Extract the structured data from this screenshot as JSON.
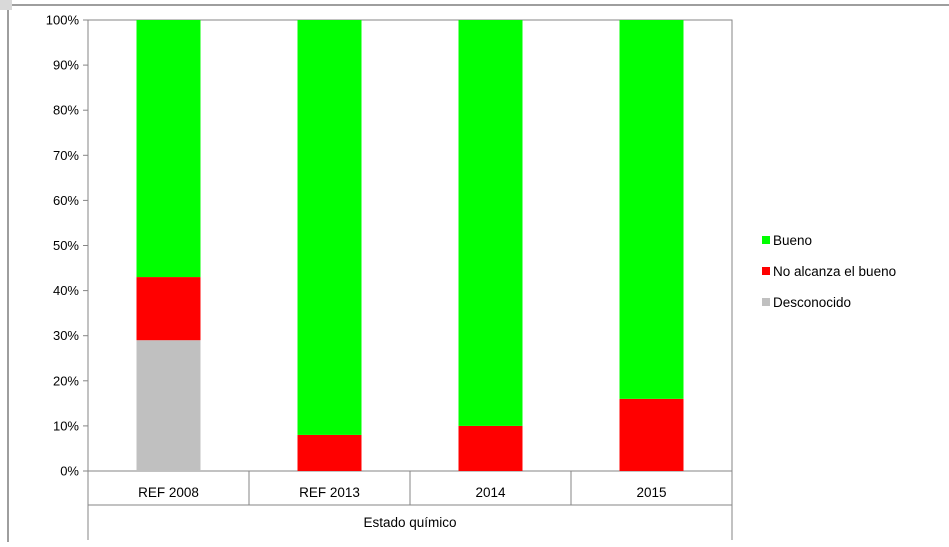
{
  "chart_data": {
    "type": "bar",
    "stacked": true,
    "percent": true,
    "categories": [
      "REF 2008",
      "REF 2013",
      "2014",
      "2015"
    ],
    "series": [
      {
        "name": "Desconocido",
        "values": [
          29,
          0,
          0,
          0
        ]
      },
      {
        "name": "No alcanza el bueno",
        "values": [
          14,
          8,
          10,
          16
        ]
      },
      {
        "name": "Bueno",
        "values": [
          57,
          92,
          90,
          84
        ]
      }
    ],
    "colors": {
      "Bueno": "#00ff00",
      "No alcanza el bueno": "#ff0000",
      "Desconocido": "#c0c0c0"
    },
    "group_label": "Estado químico",
    "y_ticks": [
      "0%",
      "10%",
      "20%",
      "30%",
      "40%",
      "50%",
      "60%",
      "70%",
      "80%",
      "90%",
      "100%"
    ],
    "ylim": [
      0,
      100
    ],
    "grid": false,
    "legend_position": "right",
    "legend_order": [
      "Bueno",
      "No alcanza el bueno",
      "Desconocido"
    ]
  }
}
